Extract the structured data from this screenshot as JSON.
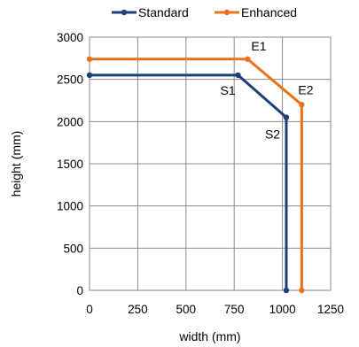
{
  "chart_data": {
    "type": "line",
    "xlabel": "width (mm)",
    "ylabel": "height (mm)",
    "xlim": [
      0,
      1250
    ],
    "ylim": [
      0,
      3000
    ],
    "xticks": [
      0,
      250,
      500,
      750,
      1000,
      1250
    ],
    "yticks": [
      0,
      500,
      1000,
      1500,
      2000,
      2500,
      3000
    ],
    "xtick_labels": [
      "0",
      "250",
      "500",
      "750",
      "1000",
      "1250"
    ],
    "ytick_labels": [
      "0",
      "500",
      "1000",
      "1500",
      "2000",
      "2500",
      "3000"
    ],
    "grid": true,
    "legend_position": "top",
    "series": [
      {
        "name": "Standard",
        "color": "#1f3f7a",
        "points": [
          [
            0,
            2550
          ],
          [
            770,
            2550
          ],
          [
            1020,
            2050
          ],
          [
            1020,
            0
          ]
        ]
      },
      {
        "name": "Enhanced",
        "color": "#e8731c",
        "points": [
          [
            0,
            2740
          ],
          [
            820,
            2740
          ],
          [
            1100,
            2200
          ],
          [
            1100,
            0
          ]
        ]
      }
    ],
    "annotations": [
      {
        "text": "S1",
        "x": 770,
        "y": 2550
      },
      {
        "text": "S2",
        "x": 1020,
        "y": 2050
      },
      {
        "text": "E1",
        "x": 820,
        "y": 2740
      },
      {
        "text": "E2",
        "x": 1100,
        "y": 2200
      }
    ]
  }
}
